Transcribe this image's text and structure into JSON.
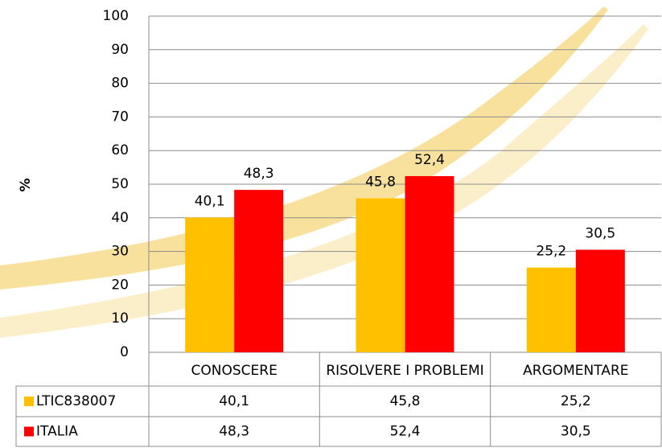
{
  "chart_data": {
    "type": "bar",
    "y_label": "%",
    "categories": [
      "CONOSCERE",
      "RISOLVERE I PROBLEMI",
      "ARGOMENTARE"
    ],
    "series": [
      {
        "name": "LTIC838007",
        "color": "#FFC000",
        "values": [
          40.1,
          45.8,
          25.2
        ],
        "value_labels": [
          "40,1",
          "45,8",
          "25,2"
        ]
      },
      {
        "name": "ITALIA",
        "color": "#FF0000",
        "values": [
          48.3,
          52.4,
          30.5
        ],
        "value_labels": [
          "48,3",
          "52,4",
          "30,5"
        ]
      }
    ],
    "ylim": [
      0,
      100
    ],
    "yticks": [
      0,
      10,
      20,
      30,
      40,
      50,
      60,
      70,
      80,
      90,
      100
    ],
    "grid": true
  }
}
